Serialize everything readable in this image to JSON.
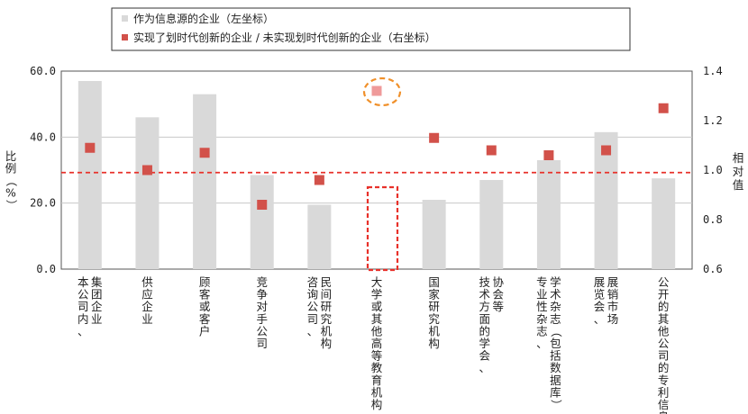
{
  "chart_data": {
    "type": "bar",
    "legend": {
      "bar_label": "作为信息源的企业（左坐标）",
      "point_label": "实现了划时代创新的企业 / 未实现划时代创新的企业（右坐标）",
      "position": "top"
    },
    "y_left": {
      "label": "比例（%）",
      "ylim": [
        0,
        60
      ],
      "ticks": [
        "0.0",
        "20.0",
        "40.0",
        "60.0"
      ]
    },
    "y_right": {
      "label": "相对值",
      "ylim": [
        0.6,
        1.4
      ],
      "ticks": [
        "0.6",
        "0.8",
        "1.0",
        "1.2",
        "1.4"
      ]
    },
    "categories": [
      "本公司内、集团企业",
      "供应企业",
      "顾客或客户",
      "竞争对手公司",
      "咨询公司、民间研究机构",
      "大学或其他高等教育机构",
      "国家研究机构",
      "技术方面的学会、协会等",
      "专业性杂志、学术杂志（包括数据库）",
      "展览会、展销市场",
      "公开的其他公司的专利信息"
    ],
    "series": [
      {
        "name": "作为信息源的企业（左坐标）",
        "axis": "left",
        "values": [
          57.0,
          46.0,
          53.0,
          28.5,
          19.5,
          0,
          21.0,
          27.0,
          33.0,
          41.5,
          27.5
        ]
      },
      {
        "name": "实现了划时代创新的企业 / 未实现划时代创新的企业（右坐标）",
        "axis": "right",
        "values": [
          1.09,
          1.0,
          1.07,
          0.86,
          0.96,
          1.32,
          1.13,
          1.08,
          1.06,
          1.08,
          1.25
        ]
      }
    ],
    "reference_line": {
      "axis": "right",
      "value": 0.99,
      "color": "#e8312a"
    },
    "highlight_marker_color": "#ef9a9a",
    "colors": {
      "bar": "#d9d9d9",
      "point": "#d2514a",
      "dashed_box": "#e8312a",
      "circle": "#f0902a"
    },
    "grid": true
  }
}
